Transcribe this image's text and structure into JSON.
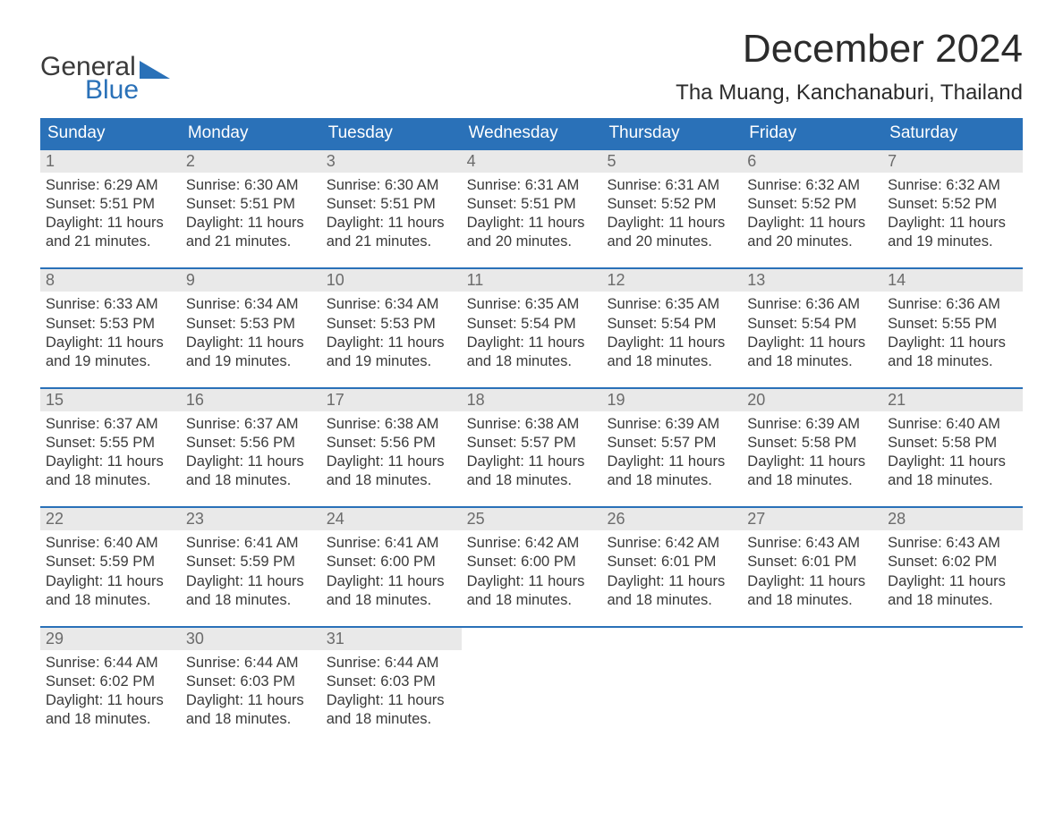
{
  "logo": {
    "word1": "General",
    "word2": "Blue"
  },
  "title": "December 2024",
  "location": "Tha Muang, Kanchanaburi, Thailand",
  "colors": {
    "header_bg": "#2a71b8",
    "header_text": "#ffffff",
    "daynum_bg": "#e9e9e9",
    "daynum_text": "#6b6b6b",
    "body_text": "#3a3a3a",
    "rule": "#2a71b8",
    "background": "#ffffff"
  },
  "typography": {
    "title_fontsize": 44,
    "location_fontsize": 24,
    "dayhead_fontsize": 19,
    "daycontent_fontsize": 16.5,
    "font_family": "Arial"
  },
  "day_names": [
    "Sunday",
    "Monday",
    "Tuesday",
    "Wednesday",
    "Thursday",
    "Friday",
    "Saturday"
  ],
  "weeks": [
    [
      {
        "num": "1",
        "sunrise": "Sunrise: 6:29 AM",
        "sunset": "Sunset: 5:51 PM",
        "dl1": "Daylight: 11 hours",
        "dl2": "and 21 minutes."
      },
      {
        "num": "2",
        "sunrise": "Sunrise: 6:30 AM",
        "sunset": "Sunset: 5:51 PM",
        "dl1": "Daylight: 11 hours",
        "dl2": "and 21 minutes."
      },
      {
        "num": "3",
        "sunrise": "Sunrise: 6:30 AM",
        "sunset": "Sunset: 5:51 PM",
        "dl1": "Daylight: 11 hours",
        "dl2": "and 21 minutes."
      },
      {
        "num": "4",
        "sunrise": "Sunrise: 6:31 AM",
        "sunset": "Sunset: 5:51 PM",
        "dl1": "Daylight: 11 hours",
        "dl2": "and 20 minutes."
      },
      {
        "num": "5",
        "sunrise": "Sunrise: 6:31 AM",
        "sunset": "Sunset: 5:52 PM",
        "dl1": "Daylight: 11 hours",
        "dl2": "and 20 minutes."
      },
      {
        "num": "6",
        "sunrise": "Sunrise: 6:32 AM",
        "sunset": "Sunset: 5:52 PM",
        "dl1": "Daylight: 11 hours",
        "dl2": "and 20 minutes."
      },
      {
        "num": "7",
        "sunrise": "Sunrise: 6:32 AM",
        "sunset": "Sunset: 5:52 PM",
        "dl1": "Daylight: 11 hours",
        "dl2": "and 19 minutes."
      }
    ],
    [
      {
        "num": "8",
        "sunrise": "Sunrise: 6:33 AM",
        "sunset": "Sunset: 5:53 PM",
        "dl1": "Daylight: 11 hours",
        "dl2": "and 19 minutes."
      },
      {
        "num": "9",
        "sunrise": "Sunrise: 6:34 AM",
        "sunset": "Sunset: 5:53 PM",
        "dl1": "Daylight: 11 hours",
        "dl2": "and 19 minutes."
      },
      {
        "num": "10",
        "sunrise": "Sunrise: 6:34 AM",
        "sunset": "Sunset: 5:53 PM",
        "dl1": "Daylight: 11 hours",
        "dl2": "and 19 minutes."
      },
      {
        "num": "11",
        "sunrise": "Sunrise: 6:35 AM",
        "sunset": "Sunset: 5:54 PM",
        "dl1": "Daylight: 11 hours",
        "dl2": "and 18 minutes."
      },
      {
        "num": "12",
        "sunrise": "Sunrise: 6:35 AM",
        "sunset": "Sunset: 5:54 PM",
        "dl1": "Daylight: 11 hours",
        "dl2": "and 18 minutes."
      },
      {
        "num": "13",
        "sunrise": "Sunrise: 6:36 AM",
        "sunset": "Sunset: 5:54 PM",
        "dl1": "Daylight: 11 hours",
        "dl2": "and 18 minutes."
      },
      {
        "num": "14",
        "sunrise": "Sunrise: 6:36 AM",
        "sunset": "Sunset: 5:55 PM",
        "dl1": "Daylight: 11 hours",
        "dl2": "and 18 minutes."
      }
    ],
    [
      {
        "num": "15",
        "sunrise": "Sunrise: 6:37 AM",
        "sunset": "Sunset: 5:55 PM",
        "dl1": "Daylight: 11 hours",
        "dl2": "and 18 minutes."
      },
      {
        "num": "16",
        "sunrise": "Sunrise: 6:37 AM",
        "sunset": "Sunset: 5:56 PM",
        "dl1": "Daylight: 11 hours",
        "dl2": "and 18 minutes."
      },
      {
        "num": "17",
        "sunrise": "Sunrise: 6:38 AM",
        "sunset": "Sunset: 5:56 PM",
        "dl1": "Daylight: 11 hours",
        "dl2": "and 18 minutes."
      },
      {
        "num": "18",
        "sunrise": "Sunrise: 6:38 AM",
        "sunset": "Sunset: 5:57 PM",
        "dl1": "Daylight: 11 hours",
        "dl2": "and 18 minutes."
      },
      {
        "num": "19",
        "sunrise": "Sunrise: 6:39 AM",
        "sunset": "Sunset: 5:57 PM",
        "dl1": "Daylight: 11 hours",
        "dl2": "and 18 minutes."
      },
      {
        "num": "20",
        "sunrise": "Sunrise: 6:39 AM",
        "sunset": "Sunset: 5:58 PM",
        "dl1": "Daylight: 11 hours",
        "dl2": "and 18 minutes."
      },
      {
        "num": "21",
        "sunrise": "Sunrise: 6:40 AM",
        "sunset": "Sunset: 5:58 PM",
        "dl1": "Daylight: 11 hours",
        "dl2": "and 18 minutes."
      }
    ],
    [
      {
        "num": "22",
        "sunrise": "Sunrise: 6:40 AM",
        "sunset": "Sunset: 5:59 PM",
        "dl1": "Daylight: 11 hours",
        "dl2": "and 18 minutes."
      },
      {
        "num": "23",
        "sunrise": "Sunrise: 6:41 AM",
        "sunset": "Sunset: 5:59 PM",
        "dl1": "Daylight: 11 hours",
        "dl2": "and 18 minutes."
      },
      {
        "num": "24",
        "sunrise": "Sunrise: 6:41 AM",
        "sunset": "Sunset: 6:00 PM",
        "dl1": "Daylight: 11 hours",
        "dl2": "and 18 minutes."
      },
      {
        "num": "25",
        "sunrise": "Sunrise: 6:42 AM",
        "sunset": "Sunset: 6:00 PM",
        "dl1": "Daylight: 11 hours",
        "dl2": "and 18 minutes."
      },
      {
        "num": "26",
        "sunrise": "Sunrise: 6:42 AM",
        "sunset": "Sunset: 6:01 PM",
        "dl1": "Daylight: 11 hours",
        "dl2": "and 18 minutes."
      },
      {
        "num": "27",
        "sunrise": "Sunrise: 6:43 AM",
        "sunset": "Sunset: 6:01 PM",
        "dl1": "Daylight: 11 hours",
        "dl2": "and 18 minutes."
      },
      {
        "num": "28",
        "sunrise": "Sunrise: 6:43 AM",
        "sunset": "Sunset: 6:02 PM",
        "dl1": "Daylight: 11 hours",
        "dl2": "and 18 minutes."
      }
    ],
    [
      {
        "num": "29",
        "sunrise": "Sunrise: 6:44 AM",
        "sunset": "Sunset: 6:02 PM",
        "dl1": "Daylight: 11 hours",
        "dl2": "and 18 minutes."
      },
      {
        "num": "30",
        "sunrise": "Sunrise: 6:44 AM",
        "sunset": "Sunset: 6:03 PM",
        "dl1": "Daylight: 11 hours",
        "dl2": "and 18 minutes."
      },
      {
        "num": "31",
        "sunrise": "Sunrise: 6:44 AM",
        "sunset": "Sunset: 6:03 PM",
        "dl1": "Daylight: 11 hours",
        "dl2": "and 18 minutes."
      },
      {
        "empty": true
      },
      {
        "empty": true
      },
      {
        "empty": true
      },
      {
        "empty": true
      }
    ]
  ]
}
